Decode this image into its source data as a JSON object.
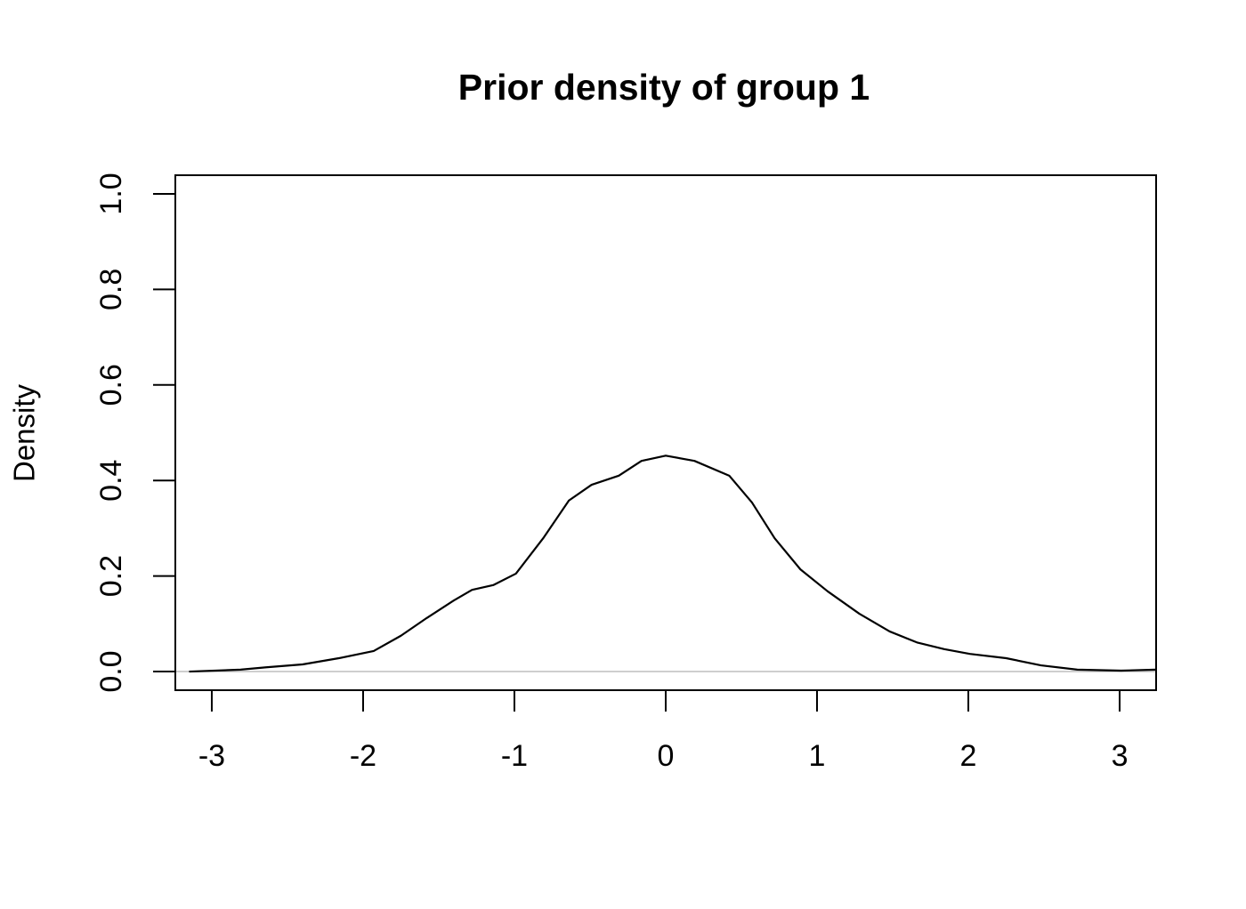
{
  "chart_data": {
    "type": "line",
    "title": "Prior density of group 1",
    "ylabel": "Density",
    "x": [
      -3.15,
      -2.81,
      -2.64,
      -2.4,
      -2.16,
      -1.93,
      -1.75,
      -1.58,
      -1.4,
      -1.28,
      -1.14,
      -0.99,
      -0.81,
      -0.64,
      -0.49,
      -0.31,
      -0.16,
      0,
      0.19,
      0.42,
      0.57,
      0.72,
      0.89,
      1.07,
      1.28,
      1.48,
      1.66,
      1.84,
      2.01,
      2.25,
      2.48,
      2.72,
      3.01,
      3.24
    ],
    "series": [
      {
        "color": "#000000",
        "values": [
          0.0,
          0.004,
          0.009,
          0.015,
          0.028,
          0.043,
          0.075,
          0.112,
          0.149,
          0.171,
          0.181,
          0.205,
          0.279,
          0.358,
          0.391,
          0.41,
          0.441,
          0.452,
          0.441,
          0.41,
          0.354,
          0.279,
          0.214,
          0.168,
          0.121,
          0.084,
          0.061,
          0.047,
          0.037,
          0.028,
          0.013,
          0.004,
          0.002,
          0.004
        ]
      }
    ],
    "xlim": [
      -3.241,
      3.241
    ],
    "ylim": [
      -0.039,
      1.039
    ],
    "xticks": [
      -3,
      -2,
      -1,
      0,
      1,
      2,
      3
    ],
    "yticks": [
      {
        "value": 0,
        "label": "0.0"
      },
      0.2,
      0.4,
      0.6,
      0.8,
      {
        "value": 1,
        "label": "1.0"
      }
    ],
    "reference_line": {
      "value": 0,
      "color": "#bebebe"
    }
  }
}
